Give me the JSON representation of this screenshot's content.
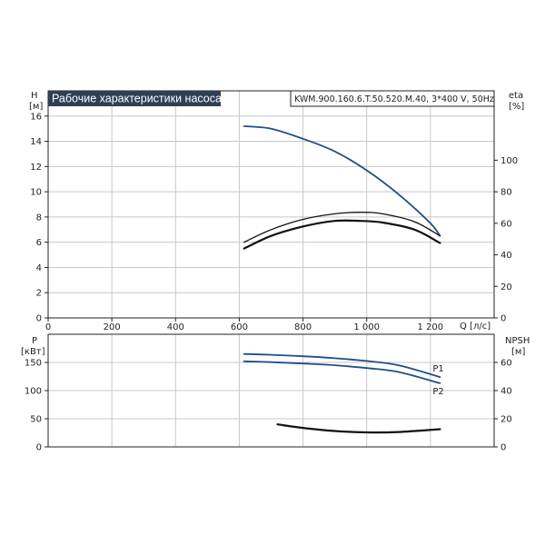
{
  "chart_data": [
    {
      "type": "line",
      "title": "Рабочие характеристики насоса",
      "model": "KWM.900.160.6.T.50.520.M.40, 3*400 V, 50Hz",
      "left_axis": {
        "label": "H",
        "unit": "[м]",
        "range": [
          0,
          18
        ],
        "ticks": [
          0,
          2,
          4,
          6,
          8,
          10,
          12,
          14,
          16
        ]
      },
      "right_axis": {
        "label": "eta",
        "unit": "[%]",
        "range": [
          0,
          144
        ],
        "ticks": [
          0,
          20,
          40,
          60,
          80,
          100
        ]
      },
      "x_axis": {
        "label": "Q [л/с]",
        "range": [
          0,
          1400
        ],
        "ticks": [
          0,
          200,
          400,
          600,
          800,
          1000,
          1200
        ],
        "tick_labels": [
          "0",
          "200",
          "400",
          "600",
          "800",
          "1 000",
          "1 200"
        ]
      },
      "grid": true,
      "series": [
        {
          "axis": "left",
          "color": "#1f4f86",
          "x": [
            615,
            700,
            800,
            900,
            1000,
            1100,
            1200,
            1230
          ],
          "y": [
            15.2,
            15.0,
            14.2,
            13.2,
            11.7,
            9.8,
            7.5,
            6.5
          ]
        },
        {
          "axis": "right",
          "color": "#111111",
          "x": [
            615,
            700,
            800,
            900,
            980,
            1050,
            1150,
            1230
          ],
          "y": [
            48,
            56,
            62.5,
            66,
            67,
            66,
            61,
            52
          ]
        },
        {
          "axis": "right",
          "color": "#111111",
          "x": [
            615,
            700,
            800,
            900,
            980,
            1050,
            1150,
            1230
          ],
          "y": [
            44,
            52,
            58,
            61.5,
            61.5,
            60.5,
            56,
            47.5
          ]
        }
      ]
    },
    {
      "type": "line",
      "left_axis": {
        "label": "P",
        "unit": "[кВт]",
        "range": [
          0,
          200
        ],
        "ticks": [
          0,
          50,
          100,
          150
        ]
      },
      "right_axis": {
        "label": "NPSH",
        "unit": "[м]",
        "range": [
          0,
          80
        ],
        "ticks": [
          0,
          20,
          40,
          60
        ]
      },
      "x_axis": {
        "range": [
          0,
          1400
        ],
        "ticks": [
          0,
          200,
          400,
          600,
          800,
          1000,
          1200
        ]
      },
      "grid": true,
      "series": [
        {
          "name": "P1",
          "axis": "left",
          "color": "#1f4f86",
          "x": [
            615,
            700,
            800,
            900,
            1000,
            1100,
            1230
          ],
          "y": [
            165,
            163.5,
            161,
            157.5,
            152.5,
            145,
            124
          ]
        },
        {
          "name": "P2",
          "axis": "left",
          "color": "#1f4f86",
          "x": [
            615,
            700,
            800,
            900,
            1000,
            1100,
            1230
          ],
          "y": [
            152,
            150.5,
            148,
            145,
            140,
            133,
            113
          ]
        },
        {
          "axis": "right",
          "color": "#111111",
          "x": [
            720,
            800,
            900,
            1000,
            1100,
            1230
          ],
          "y": [
            16,
            13.5,
            11.3,
            10.3,
            10.6,
            12.6
          ]
        }
      ]
    }
  ]
}
